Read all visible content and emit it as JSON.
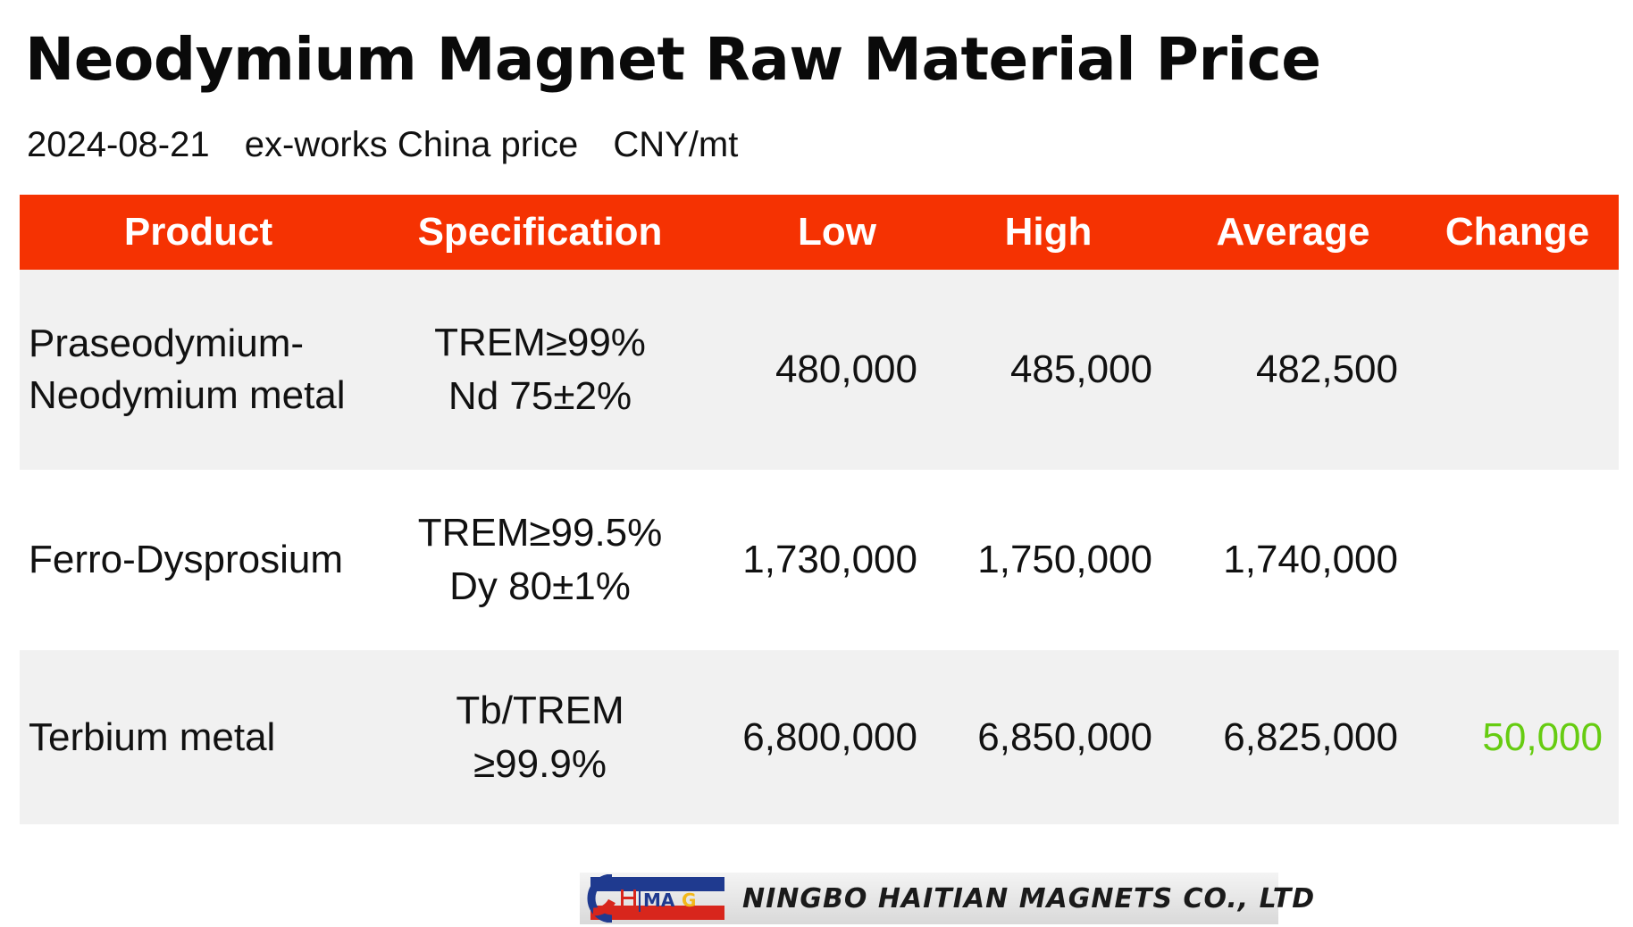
{
  "header": {
    "title": "Neodymium Magnet Raw Material Price",
    "date": "2024-08-21",
    "basis": "ex-works China price",
    "unit": "CNY/mt"
  },
  "table": {
    "columns": {
      "product": "Product",
      "spec": "Specification",
      "low": "Low",
      "high": "High",
      "avg": "Average",
      "change": "Change"
    },
    "rows": [
      {
        "product_line1": "Praseodymium-",
        "product_line2": "Neodymium metal",
        "spec_line1": "TREM≥99%",
        "spec_line2": "Nd 75±2%",
        "low": "480,000",
        "high": "485,000",
        "avg": "482,500",
        "change": ""
      },
      {
        "product_line1": "Ferro-Dysprosium",
        "product_line2": "",
        "spec_line1": "TREM≥99.5%",
        "spec_line2": "Dy 80±1%",
        "low": "1,730,000",
        "high": "1,750,000",
        "avg": "1,740,000",
        "change": ""
      },
      {
        "product_line1": "Terbium metal",
        "product_line2": "",
        "spec_line1": "Tb/TREM",
        "spec_line2": "≥99.9%",
        "low": "6,800,000",
        "high": "6,850,000",
        "avg": "6,825,000",
        "change": "50,000"
      }
    ]
  },
  "colors": {
    "header_bg": "#f53202",
    "row_shade": "#f1f1f1",
    "change_up": "#66cc11"
  },
  "footer": {
    "logo_text": "HIMAG",
    "company": "NINGBO HAITIAN MAGNETS CO., LTD"
  }
}
